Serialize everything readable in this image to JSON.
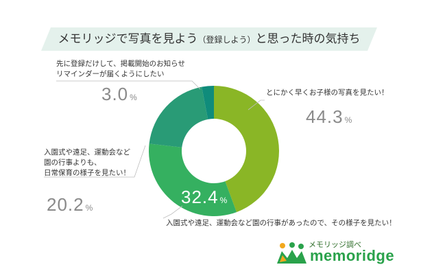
{
  "title": {
    "main": "メモリッジで写真を見よう",
    "paren": "（登録しよう）",
    "tail": "と思った時の気持ち"
  },
  "chart_data": {
    "type": "pie",
    "title": "メモリッジで写真を見よう（登録しよう）と思った時の気持ち",
    "series": [
      {
        "name": "とにかく早くお子様の写真を見たい！",
        "label_lines": [
          "とにかく早くお子様の写真を見たい！"
        ],
        "value": 44.3,
        "value_text": "44.3",
        "color": "#8ab626"
      },
      {
        "name": "入園式や遠足、運動会など園の行事があったので、その様子を見たい！",
        "label_lines": [
          "入園式や遠足、運動会など園の行事があったので、その様子を見たい！"
        ],
        "value": 32.4,
        "value_text": "32.4",
        "color": "#35b060"
      },
      {
        "name": "入園式や遠足、運動会など園の行事よりも、日常保育の様子を見たい！",
        "label_lines": [
          "入園式や遠足、運動会など",
          "園の行事よりも、",
          "日常保育の様子を見たい！"
        ],
        "value": 20.2,
        "value_text": "20.2",
        "color": "#299b76"
      },
      {
        "name": "先に登録だけして、掲載開始のお知らせリマインダーが届くようにしたい",
        "label_lines": [
          "先に登録だけして、掲載開始のお知らせ",
          "リマインダーが届くようにしたい"
        ],
        "value": 3.0,
        "value_text": "3.0",
        "color": "#0f8c7b"
      }
    ],
    "unit": "%",
    "start_angle": "12 o'clock, clockwise"
  },
  "logo": {
    "subtitle": "メモリッジ調べ",
    "name": "memoridge"
  }
}
